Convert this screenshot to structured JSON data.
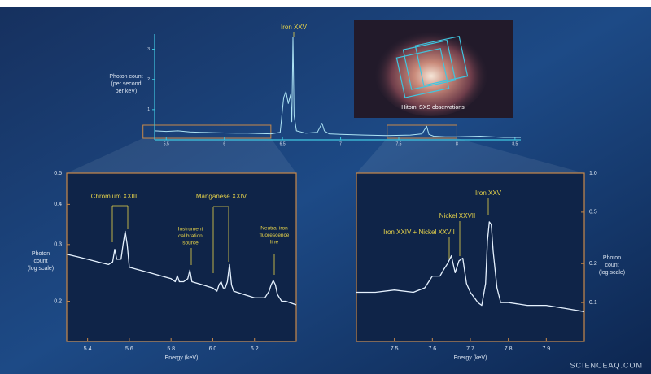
{
  "chart_data": [
    {
      "type": "line",
      "ylabel": [
        "Photon count",
        "(per second",
        "per keV)"
      ],
      "annotations": [
        {
          "lines": [
            "Iron XXV"
          ]
        }
      ],
      "x": [
        5.4,
        5.5,
        5.6,
        5.7,
        5.8,
        5.9,
        6.0,
        6.1,
        6.2,
        6.3,
        6.4,
        6.48,
        6.51,
        6.53,
        6.55,
        6.57,
        6.58,
        6.59,
        6.6,
        6.62,
        6.7,
        6.8,
        6.84,
        6.86,
        6.9,
        7.0,
        7.2,
        7.4,
        7.6,
        7.7,
        7.74,
        7.76,
        7.8,
        7.9,
        8.0,
        8.2,
        8.4,
        8.55
      ],
      "series": [
        {
          "color": "#aee4f5",
          "values": [
            0.3,
            0.28,
            0.3,
            0.26,
            0.25,
            0.24,
            0.23,
            0.22,
            0.22,
            0.21,
            0.2,
            0.25,
            1.4,
            1.6,
            1.2,
            1.5,
            0.6,
            3.4,
            0.8,
            0.3,
            0.22,
            0.25,
            0.55,
            0.3,
            0.2,
            0.18,
            0.16,
            0.14,
            0.16,
            0.2,
            0.45,
            0.18,
            0.12,
            0.1,
            0.1,
            0.12,
            0.08,
            0.08
          ]
        }
      ],
      "xlim": [
        5.4,
        8.55
      ],
      "xticks": [
        5.5,
        6,
        6.5,
        7,
        7.5,
        8,
        8.5
      ],
      "ylim": [
        0,
        3.5
      ],
      "yticks": [
        1,
        2,
        3
      ],
      "log_y": false,
      "axis_color": "#3fc6e0",
      "y_axis_side": "left"
    },
    {
      "type": "line",
      "xlabel": "Energy (keV)",
      "ylabel": [
        "Photon",
        "count",
        "(log scale)"
      ],
      "annotations": [
        {
          "lines": [
            "Chromium XXIII"
          ]
        },
        {
          "lines": [
            "Instrument",
            "calibration",
            "source"
          ]
        },
        {
          "lines": [
            "Manganese XXIV"
          ]
        },
        {
          "lines": [
            "Neutral iron",
            "fluorescence",
            "line"
          ]
        }
      ],
      "x": [
        5.3,
        5.35,
        5.4,
        5.45,
        5.5,
        5.52,
        5.53,
        5.54,
        5.56,
        5.57,
        5.58,
        5.59,
        5.6,
        5.65,
        5.7,
        5.75,
        5.8,
        5.82,
        5.83,
        5.84,
        5.86,
        5.88,
        5.89,
        5.9,
        5.95,
        6.0,
        6.02,
        6.03,
        6.04,
        6.05,
        6.06,
        6.07,
        6.08,
        6.09,
        6.1,
        6.15,
        6.2,
        6.25,
        6.27,
        6.28,
        6.29,
        6.3,
        6.31,
        6.33,
        6.35,
        6.4
      ],
      "series": [
        {
          "color": "#e6f2ff",
          "values": [
            0.28,
            0.275,
            0.27,
            0.265,
            0.26,
            0.265,
            0.29,
            0.27,
            0.27,
            0.3,
            0.33,
            0.3,
            0.255,
            0.25,
            0.245,
            0.24,
            0.235,
            0.23,
            0.24,
            0.23,
            0.23,
            0.235,
            0.25,
            0.23,
            0.225,
            0.22,
            0.215,
            0.225,
            0.23,
            0.22,
            0.22,
            0.23,
            0.26,
            0.225,
            0.215,
            0.21,
            0.205,
            0.205,
            0.215,
            0.225,
            0.232,
            0.225,
            0.21,
            0.2,
            0.2,
            0.195
          ]
        }
      ],
      "xlim": [
        5.3,
        6.4
      ],
      "xticks": [
        5.4,
        5.6,
        5.8,
        {
          "value": 6,
          "label": "6.0"
        },
        6.2
      ],
      "ylim": [
        0.15,
        0.5
      ],
      "yticks": [
        0.2,
        0.3,
        0.4,
        0.5
      ],
      "log_y": true,
      "axis_color": "#c8894a",
      "y_axis_side": "left"
    },
    {
      "type": "line",
      "xlabel": "Energy (keV)",
      "ylabel": [
        "Photon",
        "count",
        "(log scale)"
      ],
      "annotations": [
        {
          "lines": [
            "Iron XXIV + Nickel XXVII"
          ]
        },
        {
          "lines": [
            "Nickel XXVII"
          ]
        },
        {
          "lines": [
            "Iron XXV"
          ]
        }
      ],
      "x": [
        7.4,
        7.45,
        7.5,
        7.55,
        7.58,
        7.6,
        7.62,
        7.63,
        7.64,
        7.65,
        7.66,
        7.67,
        7.68,
        7.69,
        7.7,
        7.72,
        7.73,
        7.74,
        7.745,
        7.75,
        7.755,
        7.76,
        7.77,
        7.78,
        7.8,
        7.85,
        7.9,
        7.95,
        8.0
      ],
      "series": [
        {
          "color": "#e6f2ff",
          "values": [
            0.12,
            0.12,
            0.125,
            0.12,
            0.13,
            0.16,
            0.16,
            0.18,
            0.2,
            0.23,
            0.17,
            0.21,
            0.22,
            0.14,
            0.12,
            0.1,
            0.095,
            0.14,
            0.3,
            0.42,
            0.4,
            0.25,
            0.13,
            0.1,
            0.1,
            0.095,
            0.095,
            0.09,
            0.085
          ]
        }
      ],
      "xlim": [
        7.4,
        8.0
      ],
      "xticks": [
        7.5,
        7.6,
        7.7,
        7.8,
        7.9
      ],
      "ylim": [
        0.05,
        1
      ],
      "yticks": [
        0.1,
        0.2,
        0.5,
        {
          "value": 1,
          "label": "1.0"
        }
      ],
      "log_y": true,
      "axis_color": "#c8894a",
      "y_axis_side": "right"
    }
  ],
  "image_caption": "Hitomi SXS observations",
  "watermark": "SCIENCEAQ.COM"
}
